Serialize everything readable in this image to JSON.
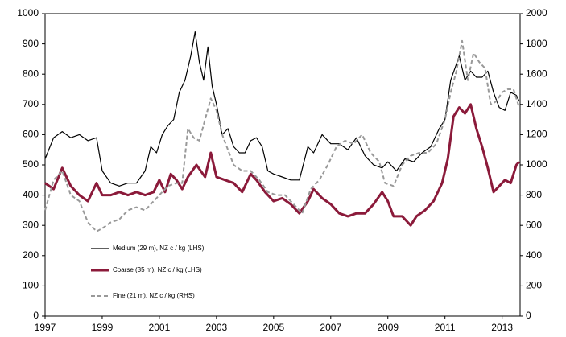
{
  "chart_data": {
    "type": "line",
    "xlim": [
      1997,
      2013.63
    ],
    "xticks": [
      1997,
      1999,
      2001,
      2003,
      2005,
      2007,
      2009,
      2011,
      2013
    ],
    "ylim": [
      0,
      1000
    ],
    "yticks": [
      0,
      100,
      200,
      300,
      400,
      500,
      600,
      700,
      800,
      900,
      1000
    ],
    "y2lim": [
      0,
      2000
    ],
    "y2ticks": [
      0,
      200,
      400,
      600,
      800,
      1000,
      1200,
      1400,
      1600,
      1800,
      2000
    ],
    "legend": "lower-left",
    "series": [
      {
        "name": "Medium (29 m), NZ c / kg (LHS)",
        "color": "#000000",
        "x": [
          1997.0,
          1997.3,
          1997.6,
          1997.9,
          1998.2,
          1998.5,
          1998.8,
          1999.0,
          1999.3,
          1999.6,
          1999.9,
          2000.2,
          2000.5,
          2000.7,
          2000.9,
          2001.1,
          2001.3,
          2001.5,
          2001.7,
          2001.9,
          2002.1,
          2002.25,
          2002.4,
          2002.55,
          2002.7,
          2002.85,
          2003.0,
          2003.2,
          2003.4,
          2003.6,
          2003.8,
          2004.0,
          2004.2,
          2004.4,
          2004.6,
          2004.8,
          2005.0,
          2005.3,
          2005.6,
          2005.9,
          2006.2,
          2006.4,
          2006.7,
          2007.0,
          2007.3,
          2007.6,
          2007.9,
          2008.2,
          2008.5,
          2008.8,
          2009.0,
          2009.3,
          2009.6,
          2009.9,
          2010.2,
          2010.5,
          2010.8,
          2011.0,
          2011.2,
          2011.5,
          2011.7,
          2011.9,
          2012.1,
          2012.3,
          2012.5,
          2012.7,
          2012.9,
          2013.1,
          2013.3,
          2013.5,
          2013.6
        ],
        "values": [
          520,
          590,
          610,
          590,
          600,
          580,
          590,
          480,
          440,
          430,
          440,
          440,
          480,
          560,
          540,
          600,
          630,
          650,
          740,
          780,
          860,
          940,
          840,
          780,
          890,
          760,
          700,
          600,
          620,
          560,
          540,
          540,
          580,
          590,
          560,
          480,
          470,
          460,
          450,
          450,
          560,
          540,
          600,
          570,
          570,
          550,
          590,
          530,
          500,
          490,
          510,
          480,
          520,
          510,
          540,
          560,
          620,
          650,
          780,
          860,
          780,
          810,
          790,
          790,
          810,
          740,
          690,
          680,
          740,
          730,
          710
        ]
      },
      {
        "name": "Coarse (35 m), NZ c / kg (LHS)",
        "color": "#8b1a3a",
        "x": [
          1997.0,
          1997.3,
          1997.6,
          1997.9,
          1998.2,
          1998.5,
          1998.8,
          1999.0,
          1999.3,
          1999.6,
          1999.9,
          2000.2,
          2000.5,
          2000.8,
          2001.0,
          2001.2,
          2001.4,
          2001.6,
          2001.8,
          2002.0,
          2002.3,
          2002.6,
          2002.8,
          2003.0,
          2003.3,
          2003.6,
          2003.9,
          2004.2,
          2004.4,
          2004.7,
          2005.0,
          2005.3,
          2005.6,
          2005.9,
          2006.2,
          2006.4,
          2006.7,
          2007.0,
          2007.3,
          2007.6,
          2007.9,
          2008.2,
          2008.5,
          2008.8,
          2009.0,
          2009.2,
          2009.5,
          2009.8,
          2010.0,
          2010.3,
          2010.6,
          2010.9,
          2011.1,
          2011.3,
          2011.5,
          2011.7,
          2011.9,
          2012.1,
          2012.3,
          2012.5,
          2012.7,
          2012.9,
          2013.1,
          2013.3,
          2013.5,
          2013.6
        ],
        "values": [
          440,
          420,
          490,
          430,
          400,
          380,
          440,
          400,
          400,
          410,
          400,
          410,
          400,
          410,
          450,
          410,
          470,
          450,
          420,
          460,
          500,
          460,
          540,
          460,
          450,
          440,
          410,
          470,
          450,
          410,
          380,
          390,
          370,
          340,
          380,
          420,
          390,
          370,
          340,
          330,
          340,
          340,
          370,
          410,
          380,
          330,
          330,
          300,
          330,
          350,
          380,
          440,
          520,
          660,
          690,
          670,
          700,
          620,
          560,
          490,
          410,
          430,
          450,
          440,
          500,
          510
        ]
      },
      {
        "name": "Fine (21 m), NZ c / kg (RHS)",
        "color": "#999999",
        "axis": "y2",
        "x": [
          1997.0,
          1997.3,
          1997.6,
          1997.9,
          1998.2,
          1998.5,
          1998.8,
          1999.0,
          1999.3,
          1999.6,
          1999.9,
          2000.2,
          2000.5,
          2000.8,
          2001.0,
          2001.3,
          2001.6,
          2001.8,
          2002.0,
          2002.2,
          2002.4,
          2002.6,
          2002.8,
          2003.0,
          2003.2,
          2003.4,
          2003.6,
          2003.9,
          2004.2,
          2004.5,
          2004.8,
          2005.1,
          2005.4,
          2005.7,
          2006.0,
          2006.3,
          2006.6,
          2006.9,
          2007.2,
          2007.5,
          2007.8,
          2008.1,
          2008.4,
          2008.7,
          2008.9,
          2009.2,
          2009.5,
          2009.8,
          2010.1,
          2010.4,
          2010.7,
          2011.0,
          2011.2,
          2011.4,
          2011.6,
          2011.8,
          2012.0,
          2012.2,
          2012.4,
          2012.6,
          2012.8,
          2013.0,
          2013.2,
          2013.4,
          2013.6
        ],
        "values": [
          700,
          900,
          960,
          800,
          760,
          620,
          560,
          580,
          620,
          640,
          700,
          720,
          700,
          760,
          800,
          860,
          880,
          880,
          1240,
          1180,
          1160,
          1300,
          1440,
          1360,
          1200,
          1100,
          1000,
          960,
          960,
          900,
          820,
          800,
          800,
          740,
          680,
          840,
          900,
          1000,
          1120,
          1160,
          1140,
          1200,
          1080,
          1020,
          880,
          860,
          1000,
          1060,
          1080,
          1080,
          1140,
          1300,
          1480,
          1620,
          1820,
          1560,
          1740,
          1680,
          1640,
          1400,
          1420,
          1480,
          1500,
          1500,
          1380
        ]
      }
    ]
  }
}
